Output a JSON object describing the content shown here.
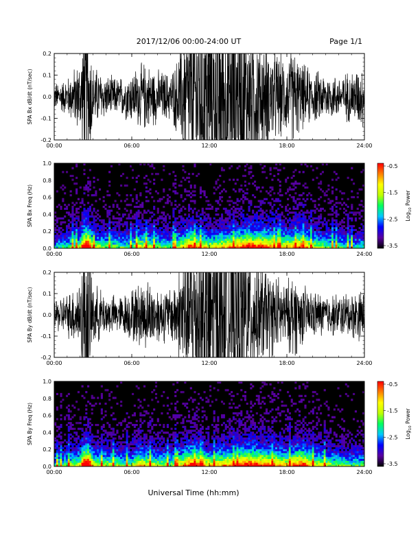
{
  "header": {
    "date_range": "2017/12/06  00:00-24:00 UT",
    "page": "Page 1/1"
  },
  "xlabel": "Universal Time (hh:mm)",
  "colors": {
    "waveform": "#000000",
    "background": "#ffffff"
  },
  "chart_data": [
    {
      "type": "line",
      "ylabel": "SPA Bx dB/dt (nT/sec)",
      "x_ticks": [
        "00:00",
        "06:00",
        "12:00",
        "18:00",
        "24:00"
      ],
      "y_ticks": [
        "0.2",
        "0.1",
        "0.0",
        "-0.1",
        "-0.2"
      ],
      "xlim_hours": [
        0,
        24
      ],
      "ylim": [
        -0.2,
        0.2
      ],
      "series": [
        {
          "x_hours": [
            0,
            1,
            2,
            2.3,
            2.7,
            3,
            4,
            5,
            6,
            7,
            8,
            9,
            9.5,
            10,
            11,
            12,
            13,
            14,
            15,
            16,
            17,
            18,
            18.5,
            19,
            20,
            21,
            22,
            23,
            24
          ],
          "amplitude": [
            0.05,
            0.07,
            0.14,
            0.3,
            0.3,
            0.12,
            0.08,
            0.07,
            0.1,
            0.13,
            0.1,
            0.09,
            0.14,
            0.25,
            0.35,
            0.4,
            0.4,
            0.35,
            0.3,
            0.22,
            0.18,
            0.14,
            0.2,
            0.13,
            0.1,
            0.09,
            0.08,
            0.1,
            0.12
          ]
        }
      ]
    },
    {
      "type": "heatmap",
      "ylabel": "SPA Bx Freq (Hz)",
      "x_ticks": [
        "00:00",
        "06:00",
        "12:00",
        "18:00",
        "24:00"
      ],
      "y_ticks": [
        "1.0",
        "0.8",
        "0.6",
        "0.4",
        "0.2",
        "0.0"
      ],
      "xlim_hours": [
        0,
        24
      ],
      "ylim": [
        0,
        1.0
      ],
      "colorbar": {
        "label_main": "Log",
        "label_sub": "10",
        "label_tail": " Power",
        "ticks": [
          "-0.5",
          "-1.5",
          "-2.5",
          "-3.5"
        ],
        "range": [
          -3.5,
          -0.5
        ],
        "stops": [
          "#000000",
          "#5a00a0",
          "#0000ff",
          "#00c8ff",
          "#00ff60",
          "#c0ff00",
          "#ffff00",
          "#ff8000",
          "#ff0000"
        ]
      },
      "activity": {
        "x_hours": [
          0,
          2,
          2.3,
          2.7,
          3,
          6,
          6.5,
          9,
          10,
          10.5,
          12,
          14,
          15,
          16,
          18,
          19.2,
          20,
          22,
          24
        ],
        "level": [
          0.3,
          0.5,
          1.0,
          1.0,
          0.5,
          0.4,
          0.6,
          0.4,
          0.6,
          0.8,
          0.55,
          0.7,
          0.85,
          0.8,
          0.6,
          0.8,
          0.55,
          0.4,
          0.35
        ]
      }
    },
    {
      "type": "line",
      "ylabel": "SPA By dB/dt (nT/sec)",
      "x_ticks": [
        "00:00",
        "06:00",
        "12:00",
        "18:00",
        "24:00"
      ],
      "y_ticks": [
        "0.2",
        "0.1",
        "0.0",
        "-0.1",
        "-0.2"
      ],
      "xlim_hours": [
        0,
        24
      ],
      "ylim": [
        -0.2,
        0.2
      ],
      "series": [
        {
          "x_hours": [
            0,
            1,
            2,
            2.3,
            2.7,
            3,
            4,
            5,
            6,
            7,
            8,
            9,
            9.5,
            10,
            11,
            12,
            13,
            14,
            15,
            16,
            17,
            18,
            18.5,
            19,
            20,
            21,
            22,
            23,
            24
          ],
          "amplitude": [
            0.06,
            0.08,
            0.14,
            0.3,
            0.3,
            0.12,
            0.08,
            0.07,
            0.1,
            0.14,
            0.11,
            0.1,
            0.16,
            0.28,
            0.38,
            0.4,
            0.4,
            0.35,
            0.28,
            0.2,
            0.16,
            0.12,
            0.18,
            0.12,
            0.09,
            0.08,
            0.08,
            0.09,
            0.1
          ]
        }
      ]
    },
    {
      "type": "heatmap",
      "ylabel": "SPA By Freq (Hz)",
      "x_ticks": [
        "00:00",
        "06:00",
        "12:00",
        "18:00",
        "24:00"
      ],
      "y_ticks": [
        "1.0",
        "0.8",
        "0.6",
        "0.4",
        "0.2",
        "0.0"
      ],
      "xlim_hours": [
        0,
        24
      ],
      "ylim": [
        0,
        1.0
      ],
      "colorbar": {
        "label_main": "Log",
        "label_sub": "10",
        "label_tail": " Power",
        "ticks": [
          "-0.5",
          "-1.5",
          "-2.5",
          "-3.5"
        ],
        "range": [
          -3.5,
          -0.5
        ],
        "stops": [
          "#000000",
          "#5a00a0",
          "#0000ff",
          "#00c8ff",
          "#00ff60",
          "#c0ff00",
          "#ffff00",
          "#ff8000",
          "#ff0000"
        ]
      },
      "activity": {
        "x_hours": [
          0,
          2,
          2.3,
          2.7,
          3,
          6,
          6.5,
          9,
          10,
          10.5,
          12,
          14,
          15,
          16,
          18,
          19.2,
          20,
          22,
          24
        ],
        "level": [
          0.35,
          0.55,
          1.0,
          1.0,
          0.55,
          0.45,
          0.65,
          0.45,
          0.65,
          0.85,
          0.6,
          0.75,
          0.85,
          0.8,
          0.65,
          0.85,
          0.6,
          0.45,
          0.4
        ]
      }
    }
  ]
}
